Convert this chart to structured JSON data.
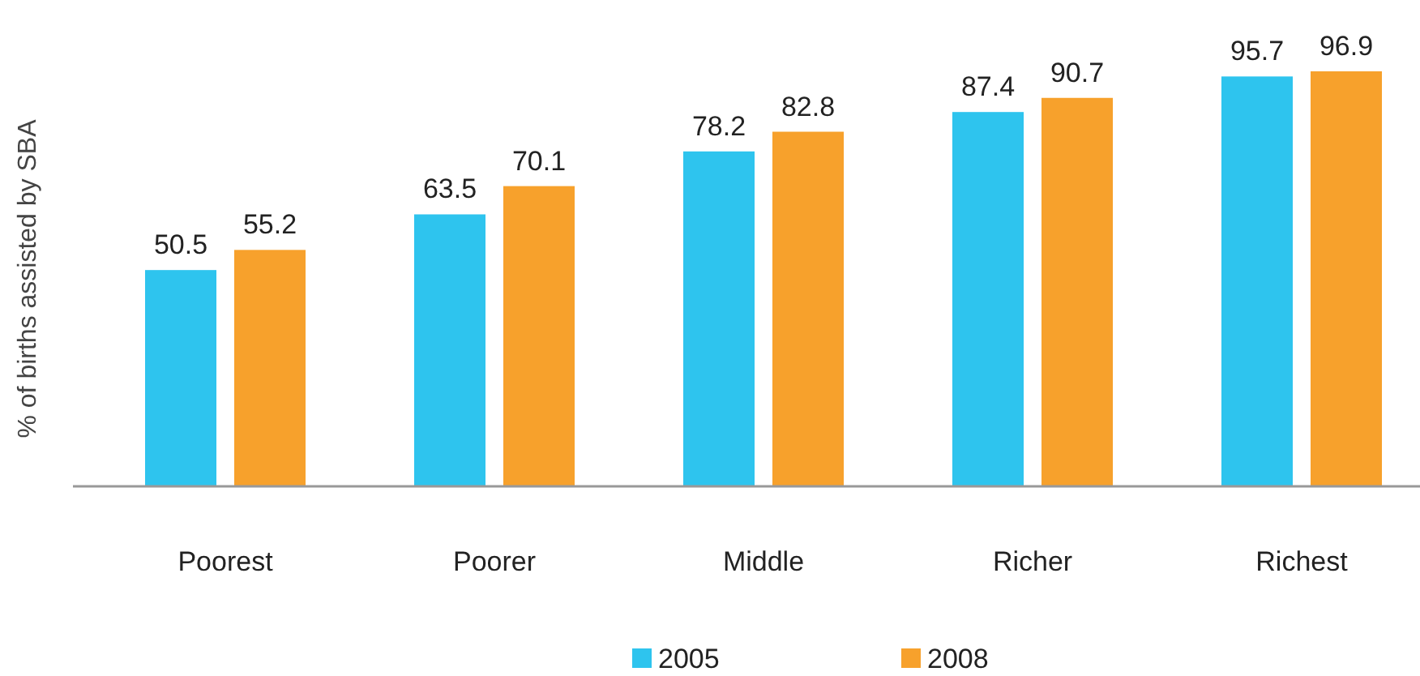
{
  "chart_data": {
    "type": "bar",
    "ylabel": "% of births assisted by SBA",
    "categories": [
      "Poorest",
      "Poorer",
      "Middle",
      "Richer",
      "Richest"
    ],
    "series": [
      {
        "name": "2005",
        "color": "#2ec4ee",
        "values": [
          50.5,
          63.5,
          78.2,
          87.4,
          95.7
        ]
      },
      {
        "name": "2008",
        "color": "#f7a12c",
        "values": [
          55.2,
          70.1,
          82.8,
          90.7,
          96.9
        ]
      }
    ],
    "data_labels": true,
    "legend": "bottom"
  }
}
